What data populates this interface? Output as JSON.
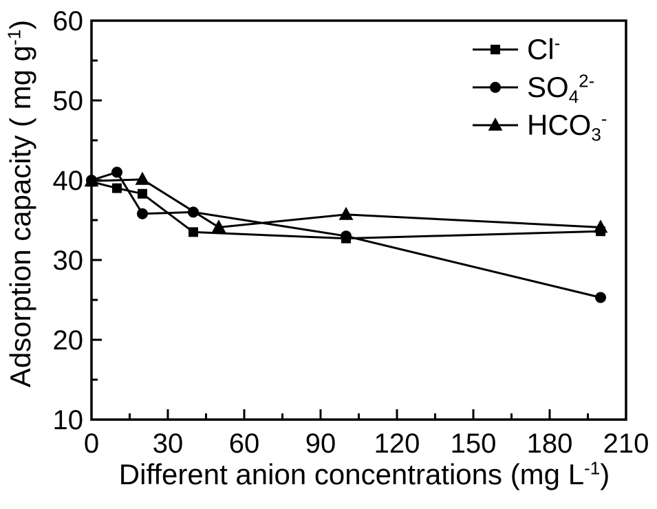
{
  "figure": {
    "background": "#ffffff",
    "axis_color": "#000000",
    "series_color": "#000000"
  },
  "chart_data": {
    "type": "line",
    "title": "",
    "xlabel": "Different anion concentrations (mg L-1)",
    "ylabel": "Adsorption capacity ( mg g-1)",
    "xlabel_parts": [
      {
        "t": "Different anion concentrations (mg L"
      },
      {
        "t": "-1",
        "sup": true
      },
      {
        "t": ")"
      }
    ],
    "ylabel_parts": [
      {
        "t": "Adsorption capacity ( mg g"
      },
      {
        "t": "-1",
        "sup": true
      },
      {
        "t": ")"
      }
    ],
    "xlim": [
      0,
      210
    ],
    "ylim": [
      10,
      60
    ],
    "x_major_ticks": [
      0,
      30,
      60,
      90,
      120,
      150,
      180,
      210
    ],
    "x_minor_ticks": [
      15,
      45,
      75,
      105,
      135,
      165,
      195
    ],
    "y_major_ticks": [
      10,
      20,
      30,
      40,
      50,
      60
    ],
    "y_minor_ticks": [
      15,
      25,
      35,
      45,
      55
    ],
    "grid": false,
    "legend_position": "top-right",
    "series": [
      {
        "name": "Cl-",
        "marker": "square",
        "color": "#000000",
        "label_parts": [
          {
            "t": "Cl"
          },
          {
            "t": "-",
            "sup": true
          }
        ],
        "points": [
          [
            0,
            39.8
          ],
          [
            10,
            39.0
          ],
          [
            20,
            38.3
          ],
          [
            40,
            33.5
          ],
          [
            100,
            32.7
          ],
          [
            200,
            33.6
          ]
        ]
      },
      {
        "name": "SO4 2-",
        "marker": "circle",
        "color": "#000000",
        "label_parts": [
          {
            "t": "SO"
          },
          {
            "t": "4",
            "sub": true
          },
          {
            "t": "2-",
            "sup": true
          }
        ],
        "points": [
          [
            0,
            40.0
          ],
          [
            10,
            41.0
          ],
          [
            20,
            35.8
          ],
          [
            40,
            36.0
          ],
          [
            100,
            33.0
          ],
          [
            200,
            25.3
          ]
        ]
      },
      {
        "name": "HCO3 -",
        "marker": "triangle",
        "color": "#000000",
        "label_parts": [
          {
            "t": "HCO"
          },
          {
            "t": "3",
            "sub": true
          },
          {
            "t": "-",
            "sup": true
          }
        ],
        "points": [
          [
            0,
            39.9
          ],
          [
            20,
            40.1
          ],
          [
            50,
            34.1
          ],
          [
            100,
            35.7
          ],
          [
            200,
            34.1
          ]
        ]
      }
    ]
  }
}
